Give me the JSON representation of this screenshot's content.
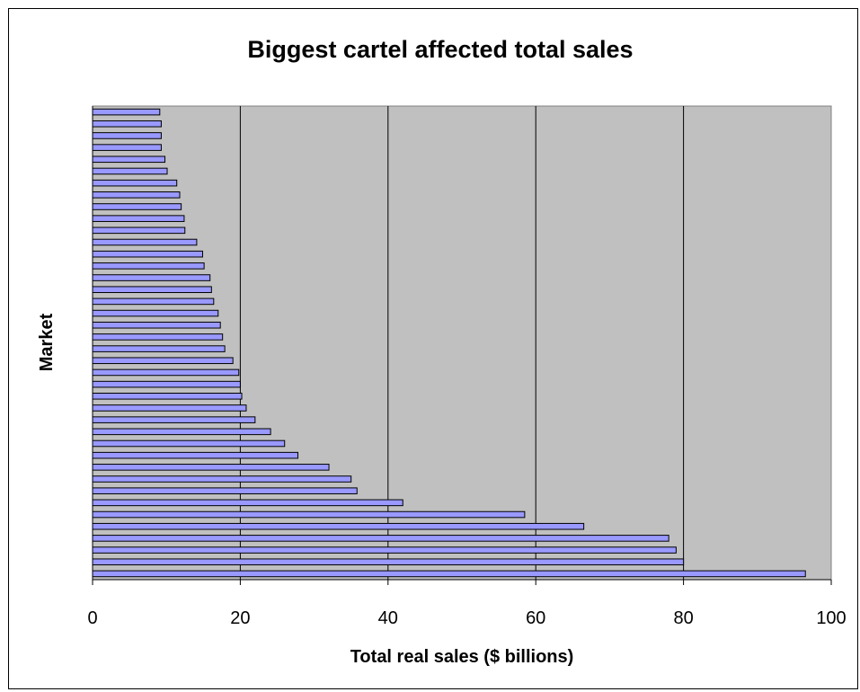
{
  "chart_data": {
    "type": "bar",
    "orientation": "horizontal",
    "title": "Biggest cartel affected total sales",
    "xlabel": "Total real sales ($ billions)",
    "ylabel": "Market",
    "xlim": [
      0,
      100
    ],
    "xticks": [
      0,
      20,
      40,
      60,
      80,
      100
    ],
    "grid": "vertical major gridlines",
    "legend": "none",
    "colors": {
      "plot_background": "#c0c0c0",
      "bar_fill": "#9999ff",
      "bar_stroke": "#000000",
      "gridline": "#000000"
    },
    "values": [
      96.5,
      80,
      79,
      78,
      66.5,
      58.5,
      42,
      35.8,
      35,
      32,
      27.8,
      26,
      24.1,
      22,
      20.8,
      20.2,
      20,
      19.8,
      19,
      17.9,
      17.6,
      17.3,
      17,
      16.4,
      16.1,
      15.9,
      15.1,
      14.9,
      14.1,
      12.5,
      12.4,
      12,
      11.8,
      11.4,
      10.1,
      9.8,
      9.3,
      9.3,
      9.3,
      9.1
    ]
  }
}
